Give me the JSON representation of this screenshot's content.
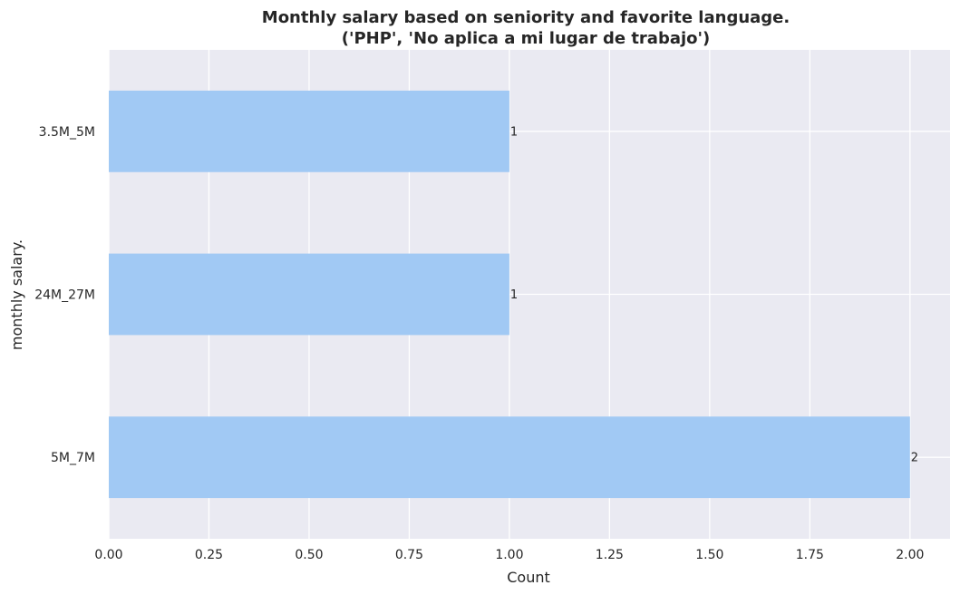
{
  "chart_data": {
    "type": "bar",
    "orientation": "horizontal",
    "title": "Monthly salary based on seniority and favorite language.",
    "subtitle": "('PHP', 'No aplica a mi lugar de trabajo')",
    "xlabel": "Count",
    "ylabel": "monthly salary.",
    "categories": [
      "3.5M_5M",
      "24M_27M",
      "5M_7M"
    ],
    "values": [
      1,
      1,
      2
    ],
    "data_labels": [
      "1",
      "1",
      "2"
    ],
    "xlim": [
      0,
      2.1
    ],
    "xticks": [
      0,
      0.25,
      0.5,
      0.75,
      1.0,
      1.25,
      1.5,
      1.75,
      2.0
    ],
    "xtick_labels": [
      "0.00",
      "0.25",
      "0.50",
      "0.75",
      "1.00",
      "1.25",
      "1.50",
      "1.75",
      "2.00"
    ],
    "grid": true,
    "colors": {
      "bar": "#a1c9f4",
      "plot_background": "#eaeaf2",
      "grid": "#ffffff",
      "text": "#262626"
    }
  }
}
